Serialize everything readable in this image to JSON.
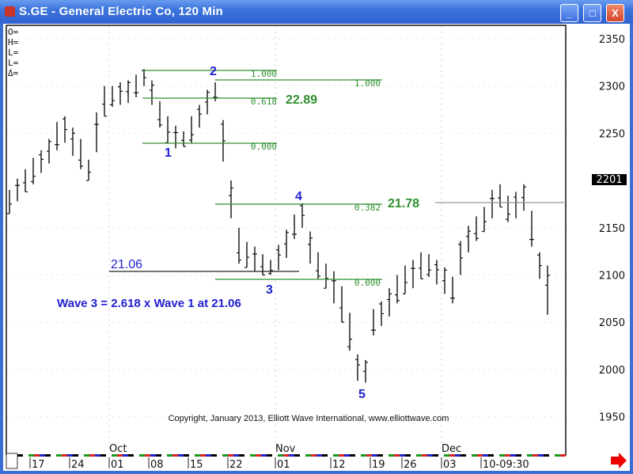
{
  "window": {
    "title": "S.GE - General Electric Co, 120 Min",
    "minimize": "_",
    "maximize": "□",
    "close": "X"
  },
  "ohlc_labels": [
    "O=",
    "H=",
    "L=",
    "L=",
    "Δ="
  ],
  "chart_data": {
    "type": "bar",
    "title": "S.GE - General Electric Co, 120 Min",
    "y_ticks": [
      1950,
      2000,
      2050,
      2100,
      2150,
      2250,
      2300,
      2350
    ],
    "ylim": [
      1925,
      2370
    ],
    "last_price": "2201",
    "month_labels": [
      {
        "label": "Oct",
        "bar": 13
      },
      {
        "label": "Nov",
        "bar": 34
      },
      {
        "label": "Dec",
        "bar": 55
      }
    ],
    "x_ticks": [
      {
        "label": "17",
        "bar": 3
      },
      {
        "label": "24",
        "bar": 8
      },
      {
        "label": "01",
        "bar": 13
      },
      {
        "label": "08",
        "bar": 18
      },
      {
        "label": "15",
        "bar": 23
      },
      {
        "label": "22",
        "bar": 28
      },
      {
        "label": "01",
        "bar": 34
      },
      {
        "label": "12",
        "bar": 41
      },
      {
        "label": "19",
        "bar": 46
      },
      {
        "label": "26",
        "bar": 50
      },
      {
        "label": "03",
        "bar": 55
      },
      {
        "label": "10-09:30",
        "bar": 60
      }
    ],
    "bars_low_high": [
      [
        2165,
        2190
      ],
      [
        2178,
        2202
      ],
      [
        2188,
        2212
      ],
      [
        2196,
        2224
      ],
      [
        2208,
        2232
      ],
      [
        2218,
        2244
      ],
      [
        2232,
        2262
      ],
      [
        2240,
        2268
      ],
      [
        2226,
        2256
      ],
      [
        2212,
        2244
      ],
      [
        2200,
        2222
      ],
      [
        2230,
        2272
      ],
      [
        2268,
        2300
      ],
      [
        2278,
        2300
      ],
      [
        2280,
        2304
      ],
      [
        2282,
        2306
      ],
      [
        2288,
        2312
      ],
      [
        2300,
        2318
      ],
      [
        2280,
        2306
      ],
      [
        2256,
        2284
      ],
      [
        2240,
        2268
      ],
      [
        2234,
        2258
      ],
      [
        2236,
        2252
      ],
      [
        2240,
        2268
      ],
      [
        2256,
        2280
      ],
      [
        2270,
        2296
      ],
      [
        2284,
        2304
      ],
      [
        2220,
        2264
      ],
      [
        2160,
        2200
      ],
      [
        2112,
        2150
      ],
      [
        2108,
        2135
      ],
      [
        2104,
        2130
      ],
      [
        2100,
        2122
      ],
      [
        2100,
        2116
      ],
      [
        2105,
        2132
      ],
      [
        2118,
        2148
      ],
      [
        2138,
        2164
      ],
      [
        2150,
        2176
      ],
      [
        2112,
        2146
      ],
      [
        2096,
        2124
      ],
      [
        2086,
        2112
      ],
      [
        2070,
        2104
      ],
      [
        2050,
        2088
      ],
      [
        2020,
        2060
      ],
      [
        1988,
        2016
      ],
      [
        1986,
        2010
      ],
      [
        2036,
        2064
      ],
      [
        2046,
        2072
      ],
      [
        2056,
        2086
      ],
      [
        2070,
        2100
      ],
      [
        2080,
        2110
      ],
      [
        2086,
        2116
      ],
      [
        2096,
        2124
      ],
      [
        2098,
        2122
      ],
      [
        2090,
        2116
      ],
      [
        2080,
        2108
      ],
      [
        2070,
        2098
      ],
      [
        2100,
        2136
      ],
      [
        2124,
        2152
      ],
      [
        2136,
        2162
      ],
      [
        2146,
        2172
      ],
      [
        2160,
        2190
      ],
      [
        2172,
        2196
      ],
      [
        2156,
        2184
      ],
      [
        2160,
        2188
      ],
      [
        2168,
        2196
      ],
      [
        2130,
        2168
      ],
      [
        2096,
        2124
      ],
      [
        2058,
        2110
      ]
    ]
  },
  "annotations": {
    "fib_a_1": "1.000",
    "fib_b_1": "1.000",
    "fib_a_618": "0.618",
    "fib_a_0": "0.000",
    "fib_b_382": "0.382",
    "fib_b_0": "0.000",
    "target_2289": "22.89",
    "target_2178": "21.78",
    "target_2106": "21.06",
    "wave_note": "Wave 3 = 2.618 x Wave 1 at 21.06",
    "waves": [
      "1",
      "2",
      "3",
      "4",
      "5"
    ],
    "copyright": "Copyright, January 2013, Elliott Wave International, www.elliottwave.com"
  },
  "colors": {
    "fib": "#2f8f2f",
    "wave": "#2020d0",
    "bars": "#111111"
  }
}
